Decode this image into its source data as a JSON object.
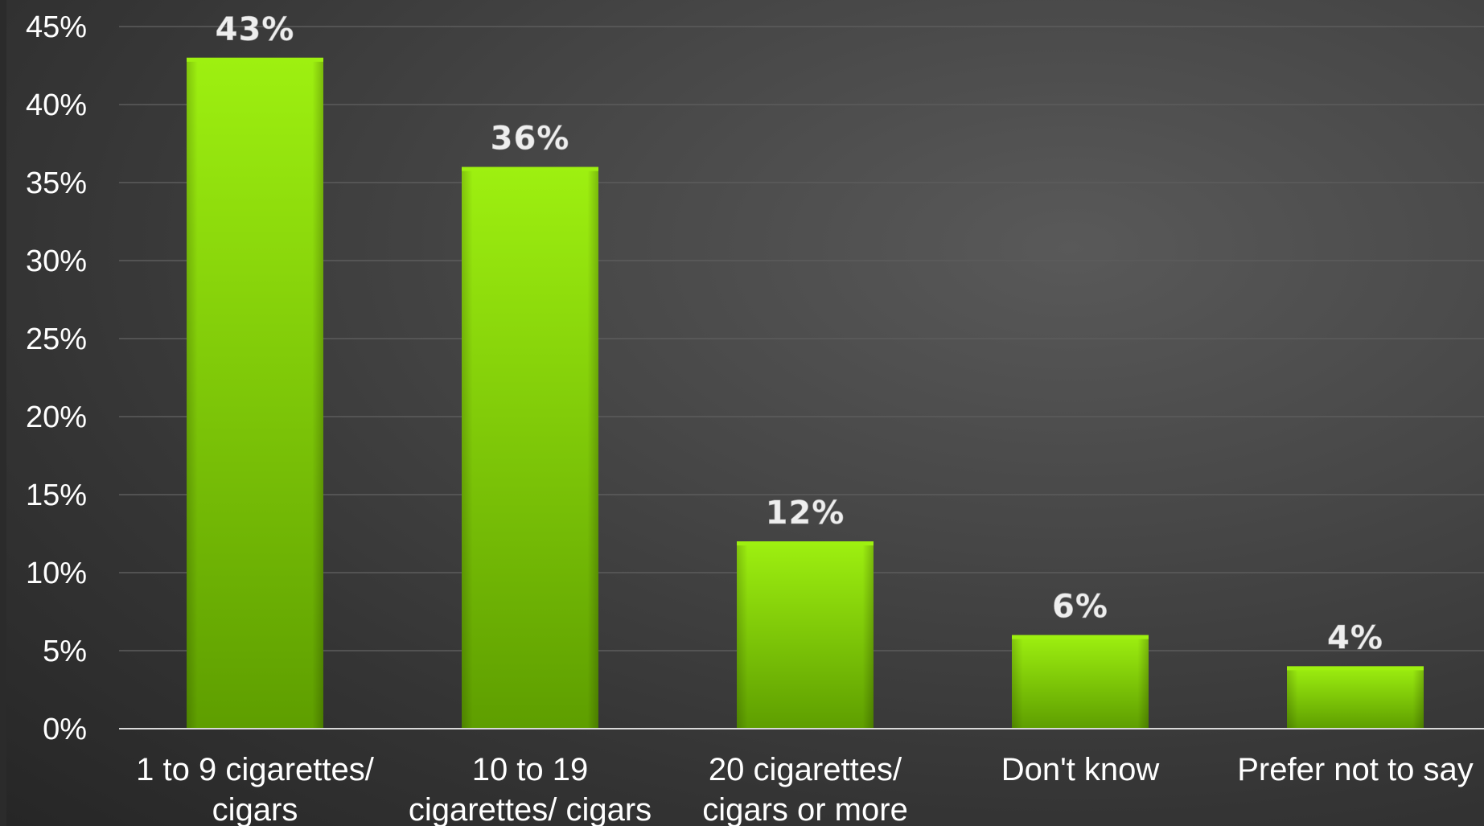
{
  "colors": {
    "bar": "#86d900",
    "bar_top": "#9ef010",
    "bar_dark": "#5e9e00",
    "background": "#3a3a3a",
    "text": "#ffffff",
    "gridline": "#5c5c5c"
  },
  "chart_data": {
    "type": "bar",
    "title": "",
    "xlabel": "",
    "ylabel": "",
    "categories": [
      [
        "1 to 9 cigarettes/",
        "cigars"
      ],
      [
        "10 to 19",
        "cigarettes/ cigars"
      ],
      [
        "20 cigarettes/",
        "cigars or more"
      ],
      [
        "Don't know"
      ],
      [
        "Prefer not to say"
      ]
    ],
    "values": [
      43,
      36,
      12,
      6,
      4
    ],
    "data_labels": [
      "43%",
      "36%",
      "12%",
      "6%",
      "4%"
    ],
    "ylim": [
      0,
      45
    ],
    "yticks": [
      0,
      5,
      10,
      15,
      20,
      25,
      30,
      35,
      40,
      45
    ],
    "ytick_labels": [
      "0%",
      "5%",
      "10%",
      "15%",
      "20%",
      "25%",
      "30%",
      "35%",
      "40%",
      "45%"
    ],
    "grid": true,
    "legend": "none"
  }
}
